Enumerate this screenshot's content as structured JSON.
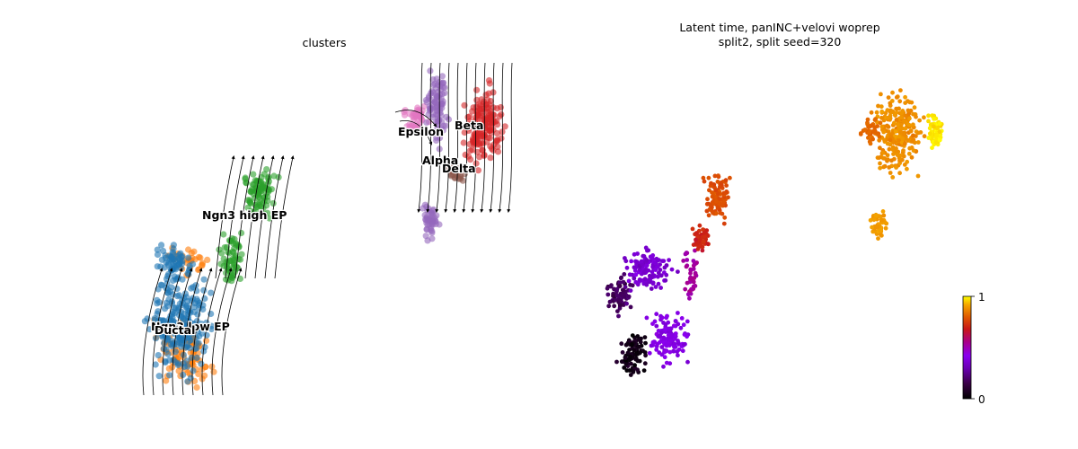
{
  "chart_data": [
    {
      "type": "scatter",
      "title": "clusters",
      "embedding": "streamlines",
      "axes_visible": false,
      "legend_placement": "on data",
      "clusters": [
        {
          "name": "Ductal",
          "color": "#ff7f0e"
        },
        {
          "name": "Ngn3 low EP",
          "color": "#1f77b4"
        },
        {
          "name": "Ngn3 high EP",
          "color": "#2ca02c"
        },
        {
          "name": "Epsilon",
          "color": "#e377c2"
        },
        {
          "name": "Beta",
          "color": "#d62728"
        },
        {
          "name": "Alpha",
          "color": "#9467bd"
        },
        {
          "name": "Delta",
          "color": "#8c564b"
        }
      ],
      "labels": [
        "Ngn3 high EP",
        "Ngn3 low EP",
        "Ductal",
        "Epsilon",
        "Beta",
        "Alpha",
        "Delta"
      ]
    },
    {
      "type": "scatter",
      "title_lines": [
        "Latent time, panINC+velovi woprep",
        "split2, split seed=320"
      ],
      "axes_visible": false,
      "colormap": "gnuplot",
      "colorbar": {
        "min": 0,
        "max": 1,
        "ticks": [
          "1",
          "0"
        ]
      }
    }
  ]
}
